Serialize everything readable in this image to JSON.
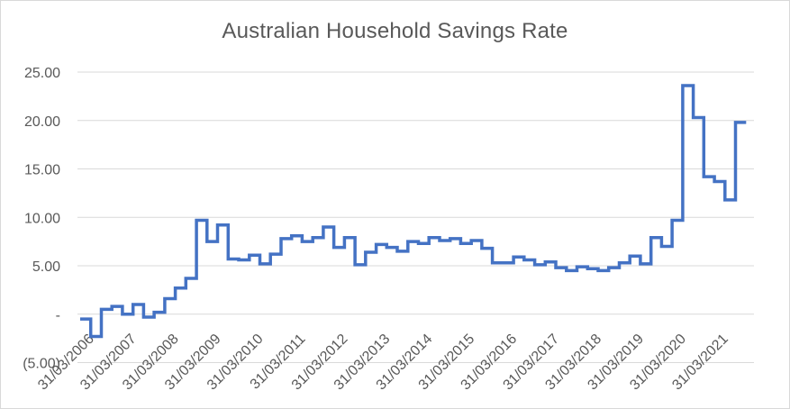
{
  "chart_data": {
    "type": "line",
    "step": true,
    "title": "Australian Household Savings Rate",
    "xlabel": "",
    "ylabel": "",
    "ylim": [
      -5,
      25
    ],
    "y_ticks": [
      {
        "value": 25,
        "label": "25.00"
      },
      {
        "value": 20,
        "label": "20.00"
      },
      {
        "value": 15,
        "label": "15.00"
      },
      {
        "value": 10,
        "label": "10.00"
      },
      {
        "value": 5,
        "label": "5.00"
      },
      {
        "value": 0,
        "label": "-"
      },
      {
        "value": -5,
        "label": "(5.00)"
      }
    ],
    "x_tick_labels": [
      "31/03/2006",
      "31/03/2007",
      "31/03/2008",
      "31/03/2009",
      "31/03/2010",
      "31/03/2011",
      "31/03/2012",
      "31/03/2013",
      "31/03/2014",
      "31/03/2015",
      "31/03/2016",
      "31/03/2017",
      "31/03/2018",
      "31/03/2019",
      "31/03/2020",
      "31/03/2021"
    ],
    "grid": true,
    "legend": "none",
    "series": [
      {
        "color": "#4472c4",
        "x": [
          "31/03/2006",
          "30/06/2006",
          "30/09/2006",
          "31/12/2006",
          "31/03/2007",
          "30/06/2007",
          "30/09/2007",
          "31/12/2007",
          "31/03/2008",
          "30/06/2008",
          "30/09/2008",
          "31/12/2008",
          "31/03/2009",
          "30/06/2009",
          "30/09/2009",
          "31/12/2009",
          "31/03/2010",
          "30/06/2010",
          "30/09/2010",
          "31/12/2010",
          "31/03/2011",
          "30/06/2011",
          "30/09/2011",
          "31/12/2011",
          "31/03/2012",
          "30/06/2012",
          "30/09/2012",
          "31/12/2012",
          "31/03/2013",
          "30/06/2013",
          "30/09/2013",
          "31/12/2013",
          "31/03/2014",
          "30/06/2014",
          "30/09/2014",
          "31/12/2014",
          "31/03/2015",
          "30/06/2015",
          "30/09/2015",
          "31/12/2015",
          "31/03/2016",
          "30/06/2016",
          "30/09/2016",
          "31/12/2016",
          "31/03/2017",
          "30/06/2017",
          "30/09/2017",
          "31/12/2017",
          "31/03/2018",
          "30/06/2018",
          "30/09/2018",
          "31/12/2018",
          "31/03/2019",
          "30/06/2019",
          "30/09/2019",
          "31/12/2019",
          "31/03/2020",
          "30/06/2020",
          "30/09/2020",
          "31/12/2020",
          "31/03/2021",
          "30/06/2021",
          "30/09/2021"
        ],
        "values": [
          -0.5,
          -2.3,
          0.5,
          0.8,
          0.0,
          1.0,
          -0.3,
          0.2,
          1.6,
          2.7,
          3.7,
          9.7,
          7.5,
          9.2,
          5.7,
          5.6,
          6.1,
          5.2,
          6.2,
          7.8,
          8.1,
          7.5,
          7.9,
          9.0,
          6.9,
          7.9,
          5.1,
          6.4,
          7.2,
          6.9,
          6.5,
          7.5,
          7.3,
          7.9,
          7.6,
          7.8,
          7.3,
          7.6,
          6.8,
          5.3,
          5.3,
          5.9,
          5.6,
          5.1,
          5.4,
          4.8,
          4.5,
          4.9,
          4.7,
          4.5,
          4.8,
          5.3,
          6.0,
          5.2,
          7.9,
          7.0,
          9.7,
          23.6,
          20.3,
          14.2,
          13.7,
          11.8,
          19.8
        ]
      }
    ]
  }
}
